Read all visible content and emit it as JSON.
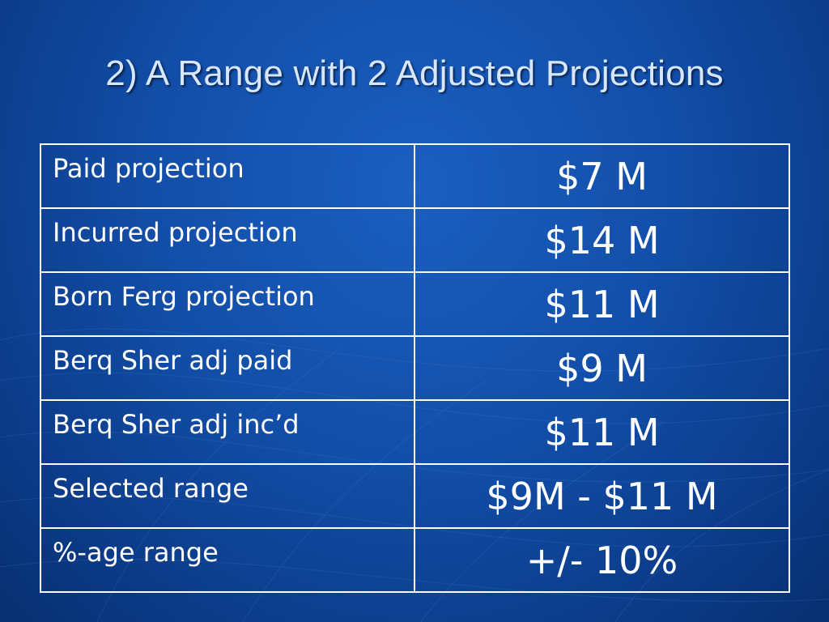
{
  "slide": {
    "title": "2) A Range with 2 Adjusted Projections"
  },
  "table": {
    "rows": [
      {
        "label": "Paid projection",
        "value": "$7 M"
      },
      {
        "label": "Incurred projection",
        "value": "$14 M"
      },
      {
        "label": "Born Ferg projection",
        "value": "$11 M"
      },
      {
        "label": "Berq Sher adj paid",
        "value": "$9 M"
      },
      {
        "label": "Berq Sher adj inc’d",
        "value": "$11 M"
      },
      {
        "label": "Selected range",
        "value": "$9M - $11 M"
      },
      {
        "label": "%-age range",
        "value": "+/- 10%"
      }
    ]
  },
  "colors": {
    "background": "#124ea8",
    "title_text": "#d8e6ff",
    "table_text": "#ffffff",
    "table_border": "#ffffff"
  }
}
